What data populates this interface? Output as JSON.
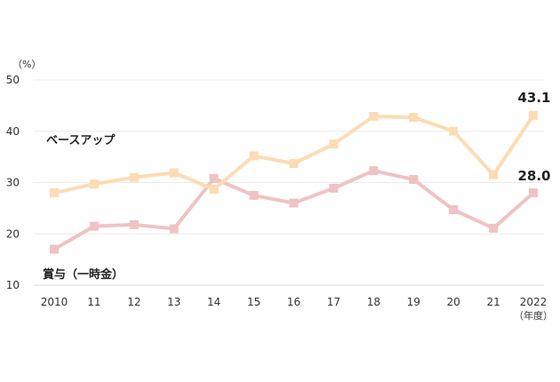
{
  "chart_data": {
    "type": "line",
    "y_unit": "（%）",
    "x_unit": "（年度）",
    "categories": [
      "2010",
      "11",
      "12",
      "13",
      "14",
      "15",
      "16",
      "17",
      "18",
      "19",
      "20",
      "21",
      "2022"
    ],
    "ylim": [
      10,
      50
    ],
    "yticks": [
      10,
      20,
      30,
      40,
      50
    ],
    "grid": "horizontal",
    "series": [
      {
        "name": "ベースアップ",
        "color": "#fcdcb4",
        "values": [
          28.0,
          29.7,
          31.0,
          31.9,
          28.7,
          35.2,
          33.7,
          37.5,
          42.9,
          42.7,
          40.0,
          31.5,
          43.1
        ],
        "end_label": "43.1"
      },
      {
        "name": "賞与（一時金）",
        "color": "#efc3c2",
        "values": [
          17.0,
          21.5,
          21.8,
          21.0,
          30.8,
          27.5,
          26.0,
          28.9,
          32.3,
          30.6,
          24.7,
          21.1,
          28.0
        ],
        "end_label": "28.0"
      }
    ]
  }
}
